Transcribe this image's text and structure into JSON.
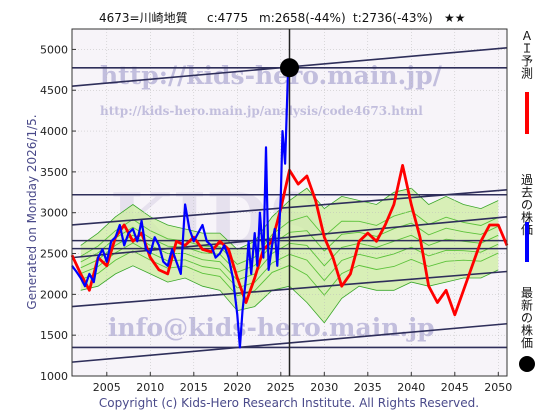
{
  "header": {
    "title": "4673=川崎地質",
    "close": "c:4775",
    "m_stat": "m:2658(-44%)",
    "t_stat": "t:2736(-43%)",
    "stars": "★★"
  },
  "side_label": "Generated on Monday 2026/1/5.",
  "footer": "Copyright (c) Kids-Hero Research Institute. All Rights Reserved.",
  "watermarks": {
    "url": "http://kids-hero.main.jp/",
    "analysis_url": "http://kids-hero.main.jp/analysis/code4673.html",
    "email": "info@kids-hero.main.jp",
    "big": "KIDS"
  },
  "legend": [
    {
      "text": "ＡＩ予測",
      "color": "#ff0000",
      "marker": "line"
    },
    {
      "text": "過去の株価",
      "color": "#0000ff",
      "marker": "line"
    },
    {
      "text": "最新の株価",
      "color": "#000000",
      "marker": "dot"
    }
  ],
  "chart_data": {
    "type": "line",
    "xlim": [
      2001,
      2051
    ],
    "ylim": [
      1000,
      5250
    ],
    "xticks": [
      2005,
      2010,
      2015,
      2020,
      2025,
      2030,
      2035,
      2040,
      2045,
      2050
    ],
    "yticks": [
      1000,
      1500,
      2000,
      2500,
      3000,
      3500,
      4000,
      4500,
      5000
    ],
    "latest": {
      "x": 2026.0,
      "y": 4775
    },
    "latest_vline_x": 2026.0,
    "horizontal_lines": [
      4775,
      3220,
      2658,
      2560,
      1350
    ],
    "trend_lines": [
      {
        "x": [
          2001,
          2051
        ],
        "y": [
          4550,
          5020
        ]
      },
      {
        "x": [
          2001,
          2051
        ],
        "y": [
          2850,
          3280
        ]
      },
      {
        "x": [
          2001,
          2051
        ],
        "y": [
          2450,
          2950
        ]
      },
      {
        "x": [
          2001,
          2051
        ],
        "y": [
          1850,
          2280
        ]
      },
      {
        "x": [
          2001,
          2051
        ],
        "y": [
          1170,
          1640
        ]
      }
    ],
    "band": {
      "x": [
        2002,
        2004,
        2006,
        2008,
        2010,
        2012,
        2014,
        2016,
        2018,
        2020,
        2022,
        2024,
        2026,
        2028,
        2030,
        2032,
        2034,
        2036,
        2038,
        2040,
        2042,
        2044,
        2046,
        2048,
        2050
      ],
      "upper": [
        2600,
        2750,
        2950,
        3100,
        2950,
        2850,
        2800,
        2750,
        2750,
        2550,
        2650,
        2950,
        3150,
        3300,
        3050,
        3200,
        3150,
        3100,
        3250,
        3300,
        3100,
        3200,
        3100,
        3050,
        3150
      ],
      "lower": [
        2050,
        2100,
        2250,
        2350,
        2250,
        2150,
        2200,
        2100,
        2050,
        1800,
        1850,
        2050,
        2100,
        1900,
        1650,
        1950,
        2100,
        2050,
        2050,
        2150,
        2100,
        2150,
        2200,
        2200,
        2300
      ]
    },
    "series": [
      {
        "kind": "ai_forecast",
        "color": "#ff0000",
        "x": [
          2001,
          2002,
          2003,
          2004,
          2005,
          2006,
          2007,
          2008,
          2009,
          2010,
          2011,
          2012,
          2013,
          2014,
          2015,
          2016,
          2017,
          2018,
          2019,
          2020,
          2021,
          2022,
          2023,
          2024,
          2025,
          2026,
          2027,
          2028,
          2029,
          2030,
          2031,
          2032,
          2033,
          2034,
          2035,
          2036,
          2037,
          2038,
          2039,
          2040,
          2041,
          2042,
          2043,
          2044,
          2045,
          2046,
          2047,
          2048,
          2049,
          2050,
          2051
        ],
        "y": [
          2480,
          2250,
          2050,
          2450,
          2350,
          2700,
          2850,
          2650,
          2750,
          2450,
          2300,
          2250,
          2650,
          2600,
          2700,
          2550,
          2520,
          2650,
          2550,
          2200,
          1900,
          2200,
          2550,
          2650,
          3050,
          3520,
          3350,
          3450,
          3150,
          2700,
          2450,
          2100,
          2250,
          2650,
          2750,
          2650,
          2850,
          3100,
          3580,
          3100,
          2700,
          2100,
          1900,
          2050,
          1750,
          2050,
          2350,
          2650,
          2850,
          2850,
          2600
        ]
      },
      {
        "kind": "past_price",
        "color": "#0000ff",
        "x": [
          2001,
          2001.5,
          2002,
          2002.5,
          2003,
          2003.5,
          2004,
          2004.5,
          2005,
          2005.5,
          2006,
          2006.5,
          2007,
          2007.5,
          2008,
          2008.5,
          2009,
          2009.5,
          2010,
          2010.5,
          2011,
          2011.5,
          2012,
          2012.5,
          2013,
          2013.5,
          2014,
          2014.5,
          2015,
          2015.5,
          2016,
          2016.5,
          2017,
          2017.5,
          2018,
          2018.5,
          2019,
          2019.5,
          2020,
          2020.3,
          2020.6,
          2021,
          2021.3,
          2021.6,
          2022,
          2022.3,
          2022.6,
          2023,
          2023.3,
          2023.6,
          2024,
          2024.3,
          2024.6,
          2025,
          2025.2,
          2025.5,
          2025.8,
          2026
        ],
        "y": [
          2350,
          2280,
          2200,
          2100,
          2250,
          2150,
          2450,
          2550,
          2400,
          2650,
          2700,
          2850,
          2600,
          2750,
          2800,
          2650,
          2900,
          2550,
          2500,
          2700,
          2600,
          2400,
          2350,
          2550,
          2400,
          2250,
          3100,
          2800,
          2650,
          2750,
          2850,
          2650,
          2600,
          2450,
          2500,
          2600,
          2450,
          2200,
          1750,
          1350,
          1800,
          2200,
          2650,
          2250,
          2750,
          2350,
          3000,
          2450,
          3800,
          2300,
          2600,
          2800,
          2350,
          3200,
          4000,
          3600,
          4650,
          4775
        ]
      }
    ]
  }
}
